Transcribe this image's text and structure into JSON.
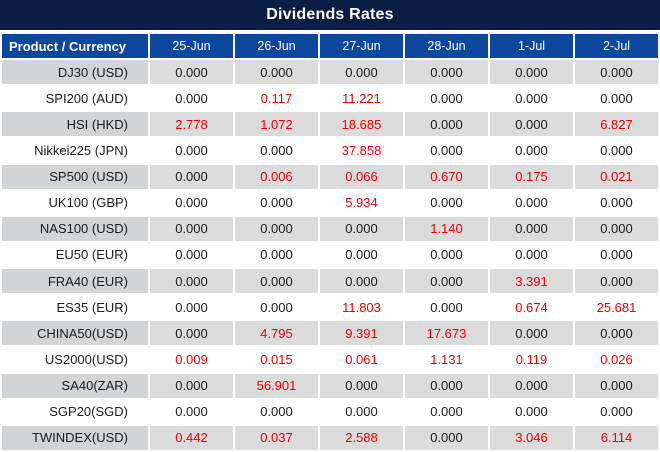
{
  "title": "Dividends Rates",
  "chart_data": {
    "type": "table",
    "title": "Dividends Rates",
    "product_column_header": "Product / Currency",
    "date_column_headers": [
      "25-Jun",
      "26-Jun",
      "27-Jun",
      "28-Jun",
      "1-Jul",
      "2-Jul"
    ],
    "rows": [
      {
        "product": "DJ30 (USD)",
        "values": [
          "0.000",
          "0.000",
          "0.000",
          "0.000",
          "0.000",
          "0.000"
        ],
        "red": [
          false,
          false,
          false,
          false,
          false,
          false
        ]
      },
      {
        "product": "SPI200 (AUD)",
        "values": [
          "0.000",
          "0.117",
          "11.221",
          "0.000",
          "0.000",
          "0.000"
        ],
        "red": [
          false,
          true,
          true,
          false,
          false,
          false
        ]
      },
      {
        "product": "HSI (HKD)",
        "values": [
          "2.778",
          "1.072",
          "18.685",
          "0.000",
          "0.000",
          "6.827"
        ],
        "red": [
          true,
          true,
          true,
          false,
          false,
          true
        ]
      },
      {
        "product": "Nikkei225 (JPN)",
        "values": [
          "0.000",
          "0.000",
          "37.858",
          "0.000",
          "0.000",
          "0.000"
        ],
        "red": [
          false,
          false,
          true,
          false,
          false,
          false
        ]
      },
      {
        "product": "SP500 (USD)",
        "values": [
          "0.000",
          "0.006",
          "0.066",
          "0.670",
          "0.175",
          "0.021"
        ],
        "red": [
          false,
          true,
          true,
          true,
          true,
          true
        ]
      },
      {
        "product": "UK100 (GBP)",
        "values": [
          "0.000",
          "0.000",
          "5.934",
          "0.000",
          "0.000",
          "0.000"
        ],
        "red": [
          false,
          false,
          true,
          false,
          false,
          false
        ]
      },
      {
        "product": "NAS100 (USD)",
        "values": [
          "0.000",
          "0.000",
          "0.000",
          "1.140",
          "0.000",
          "0.000"
        ],
        "red": [
          false,
          false,
          false,
          true,
          false,
          false
        ]
      },
      {
        "product": "EU50 (EUR)",
        "values": [
          "0.000",
          "0.000",
          "0.000",
          "0.000",
          "0.000",
          "0.000"
        ],
        "red": [
          false,
          false,
          false,
          false,
          false,
          false
        ]
      },
      {
        "product": "FRA40 (EUR)",
        "values": [
          "0.000",
          "0.000",
          "0.000",
          "0.000",
          "3.391",
          "0.000"
        ],
        "red": [
          false,
          false,
          false,
          false,
          true,
          false
        ]
      },
      {
        "product": "ES35 (EUR)",
        "values": [
          "0.000",
          "0.000",
          "11.803",
          "0.000",
          "0.674",
          "25.681"
        ],
        "red": [
          false,
          false,
          true,
          false,
          true,
          true
        ]
      },
      {
        "product": "CHINA50(USD)",
        "values": [
          "0.000",
          "4.795",
          "9.391",
          "17.673",
          "0.000",
          "0.000"
        ],
        "red": [
          false,
          true,
          true,
          true,
          false,
          false
        ]
      },
      {
        "product": "US2000(USD)",
        "values": [
          "0.009",
          "0.015",
          "0.061",
          "1.131",
          "0.119",
          "0.026"
        ],
        "red": [
          true,
          true,
          true,
          true,
          true,
          true
        ]
      },
      {
        "product": "SA40(ZAR)",
        "values": [
          "0.000",
          "56.901",
          "0.000",
          "0.000",
          "0.000",
          "0.000"
        ],
        "red": [
          false,
          true,
          false,
          false,
          false,
          false
        ]
      },
      {
        "product": "SGP20(SGD)",
        "values": [
          "0.000",
          "0.000",
          "0.000",
          "0.000",
          "0.000",
          "0.000"
        ],
        "red": [
          false,
          false,
          false,
          false,
          false,
          false
        ]
      },
      {
        "product": "TWINDEX(USD)",
        "values": [
          "0.442",
          "0.037",
          "2.588",
          "0.000",
          "3.046",
          "6.114"
        ],
        "red": [
          true,
          true,
          true,
          false,
          true,
          true
        ]
      }
    ]
  },
  "colors": {
    "title_bar_bg": "#0A1E45",
    "header_bg": "#0E47A0",
    "alt_row_value_bg": "#DBDBDB",
    "alt_row_product_bg": "#D3D4D6",
    "value_text": "#1B1B1B",
    "red_value_text": "#EE0000"
  }
}
